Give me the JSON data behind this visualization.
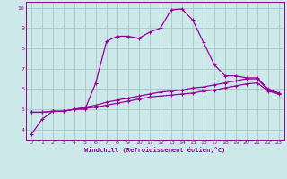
{
  "background_color": "#cce8e8",
  "plot_bg_color": "#cce8e8",
  "line_color": "#990099",
  "grid_color": "#aacccc",
  "xlabel": "Windchill (Refroidissement éolien,°C)",
  "ylabel": "",
  "title": "",
  "xlim": [
    -0.5,
    23.5
  ],
  "ylim": [
    3.5,
    10.3
  ],
  "xticks": [
    0,
    1,
    2,
    3,
    4,
    5,
    6,
    7,
    8,
    9,
    10,
    11,
    12,
    13,
    14,
    15,
    16,
    17,
    18,
    19,
    20,
    21,
    22,
    23
  ],
  "yticks": [
    4,
    5,
    6,
    7,
    8,
    9,
    10
  ],
  "series1_x": [
    0,
    1,
    2,
    3,
    4,
    5,
    6,
    7,
    8,
    9,
    10,
    11,
    12,
    13,
    14,
    15,
    16,
    17,
    18,
    19,
    20,
    21,
    22,
    23
  ],
  "series1_y": [
    3.75,
    4.5,
    4.9,
    4.9,
    5.0,
    5.0,
    6.3,
    8.35,
    8.6,
    8.6,
    8.5,
    8.8,
    9.0,
    9.9,
    9.95,
    9.4,
    8.3,
    7.2,
    6.65,
    6.65,
    6.55,
    6.55,
    6.0,
    5.8
  ],
  "series2_x": [
    0,
    1,
    2,
    3,
    4,
    5,
    6,
    7,
    8,
    9,
    10,
    11,
    12,
    13,
    14,
    15,
    16,
    17,
    18,
    19,
    20,
    21,
    22,
    23
  ],
  "series2_y": [
    4.85,
    4.85,
    4.9,
    4.9,
    5.0,
    5.1,
    5.2,
    5.35,
    5.45,
    5.55,
    5.65,
    5.75,
    5.85,
    5.9,
    5.95,
    6.05,
    6.1,
    6.2,
    6.3,
    6.4,
    6.5,
    6.5,
    5.95,
    5.8
  ],
  "series3_x": [
    0,
    1,
    2,
    3,
    4,
    5,
    6,
    7,
    8,
    9,
    10,
    11,
    12,
    13,
    14,
    15,
    16,
    17,
    18,
    19,
    20,
    21,
    22,
    23
  ],
  "series3_y": [
    4.85,
    4.85,
    4.9,
    4.9,
    5.0,
    5.05,
    5.1,
    5.2,
    5.3,
    5.4,
    5.5,
    5.6,
    5.65,
    5.7,
    5.75,
    5.8,
    5.9,
    5.95,
    6.05,
    6.15,
    6.25,
    6.3,
    5.9,
    5.75
  ]
}
